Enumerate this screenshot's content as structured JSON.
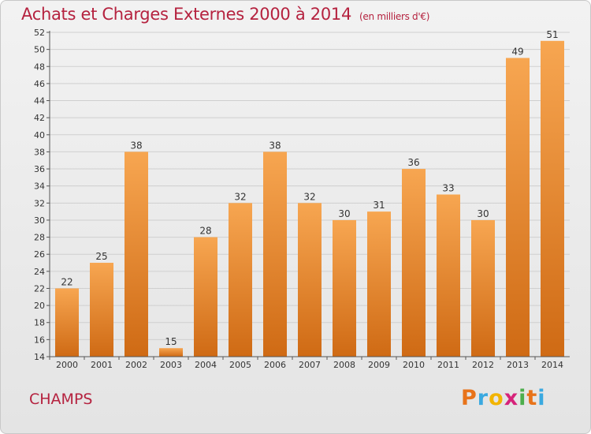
{
  "header": {
    "title": "Achats et Charges Externes 2000 à 2014",
    "unit": "(en milliers d'€)"
  },
  "commune": "CHAMPS",
  "brand": {
    "letters": [
      "P",
      "r",
      "o",
      "x",
      "i",
      "t",
      "i"
    ],
    "colors": [
      "#e8731a",
      "#3aa9e0",
      "#f2b400",
      "#d6237a",
      "#4cae4c",
      "#e8731a",
      "#3aa9e0"
    ]
  },
  "colors": {
    "bar_light": "#f7a651",
    "bar_dark": "#cf6a14",
    "title": "#b5223f"
  },
  "chart_data": {
    "type": "bar",
    "categories": [
      "2000",
      "2001",
      "2002",
      "2003",
      "2004",
      "2005",
      "2006",
      "2007",
      "2008",
      "2009",
      "2010",
      "2011",
      "2012",
      "2013",
      "2014"
    ],
    "values": [
      22,
      25,
      38,
      15,
      28,
      32,
      38,
      32,
      30,
      31,
      36,
      33,
      30,
      49,
      51
    ],
    "ylim": [
      14,
      52
    ],
    "yticks": [
      14,
      16,
      18,
      20,
      22,
      24,
      26,
      28,
      30,
      32,
      34,
      36,
      38,
      40,
      42,
      44,
      46,
      48,
      50,
      52
    ],
    "grid": true,
    "data_labels": true
  }
}
